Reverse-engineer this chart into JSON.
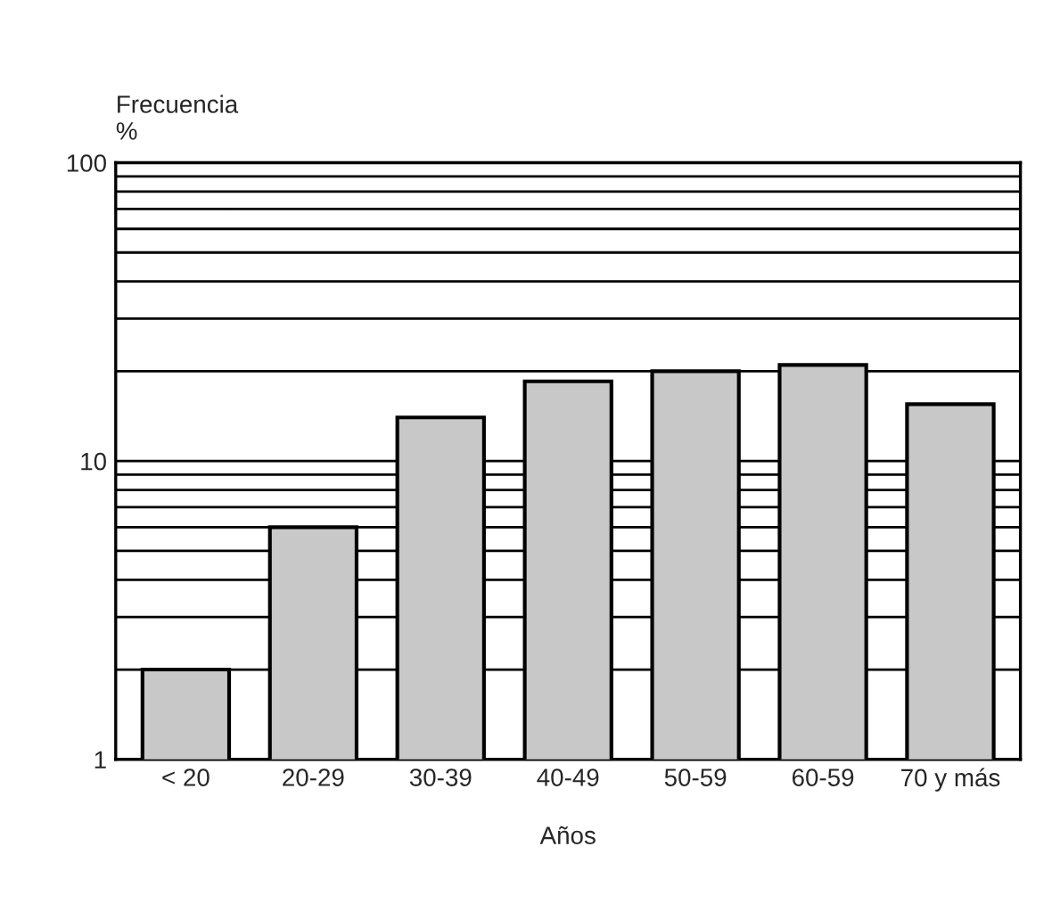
{
  "chart_data": {
    "type": "bar",
    "ylabel": "Frecuencia\n%",
    "xlabel": "Años",
    "categories": [
      "< 20",
      "20-29",
      "30-39",
      "40-49",
      "50-59",
      "60-59",
      "70 y más"
    ],
    "values": [
      2,
      6,
      14,
      18.5,
      20,
      21,
      15.5
    ],
    "color": "#c8c8c8",
    "log": true,
    "ylim": [
      1,
      100
    ],
    "yticks": [
      1,
      10,
      100
    ],
    "grid": "y"
  }
}
